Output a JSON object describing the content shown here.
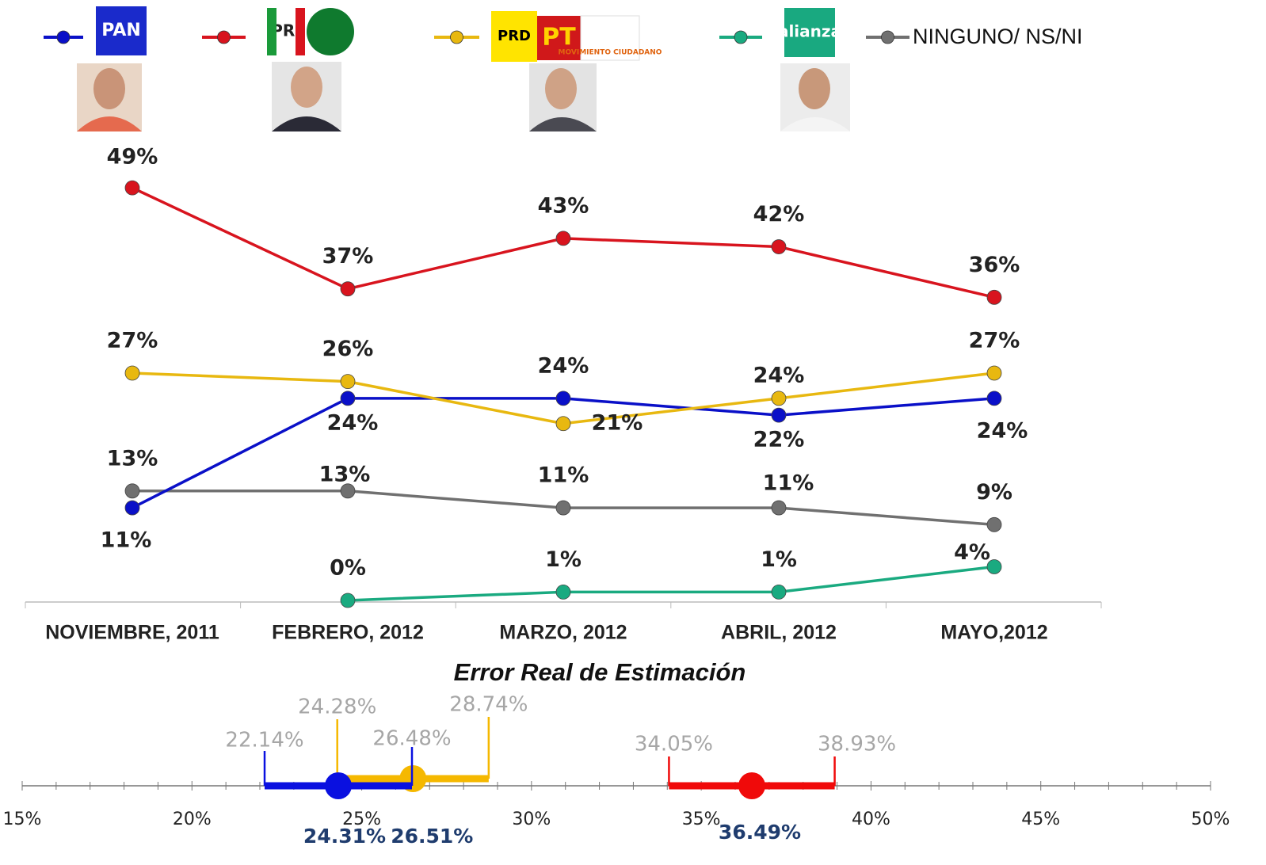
{
  "chart_data": [
    {
      "type": "line",
      "categories": [
        "NOVIEMBRE, 2011",
        "FEBRERO, 2012",
        "MARZO, 2012",
        "ABRIL, 2012",
        "MAYO,2012"
      ],
      "series": [
        {
          "logos": [
            "PAN"
          ],
          "color": "#0a10c8",
          "values": [
            11,
            24,
            24,
            22,
            24
          ],
          "value_labels": [
            "11%",
            "24%",
            "24%",
            "22%",
            "24%"
          ]
        },
        {
          "logos": [
            "PRI"
          ],
          "color": "#d8141e",
          "values": [
            49,
            37,
            43,
            42,
            36
          ],
          "value_labels": [
            "49%",
            "37%",
            "43%",
            "42%",
            "36%"
          ]
        },
        {
          "logos": [
            "PRD",
            "PT",
            "MOVIMIENTO CIUDADANO"
          ],
          "color": "#e8b810",
          "values": [
            27,
            26,
            21,
            24,
            27
          ],
          "value_labels": [
            "27%",
            "26%",
            "21%",
            "24%",
            "27%"
          ]
        },
        {
          "logos": [
            "alianza"
          ],
          "color": "#1aaa80",
          "values": [
            null,
            0,
            1,
            1,
            4
          ],
          "value_labels": [
            null,
            "0%",
            "1%",
            "1%",
            "4%"
          ]
        },
        {
          "name": "NINGUNO/ NS/NI",
          "color": "#707070",
          "values": [
            13,
            13,
            11,
            11,
            9
          ],
          "value_labels": [
            "13%",
            "13%",
            "11%",
            "11%",
            "9%"
          ]
        }
      ]
    },
    {
      "type": "range",
      "title": "Error Real de Estimación",
      "xlim": [
        15,
        50
      ],
      "xticks": [
        {
          "value": 15,
          "label": "15%"
        },
        {
          "value": 20,
          "label": "20%"
        },
        {
          "value": 25,
          "label": "25%"
        },
        {
          "value": 30,
          "label": "30%"
        },
        {
          "value": 35,
          "label": "35%"
        },
        {
          "value": 40,
          "label": "40%"
        },
        {
          "value": 45,
          "label": "45%"
        },
        {
          "value": 50,
          "label": "50%"
        }
      ],
      "minor_xticks": [
        16,
        17,
        18,
        19,
        21,
        22,
        23,
        24,
        26,
        27,
        28,
        29,
        31,
        32,
        33,
        34,
        36,
        37,
        38,
        39,
        41,
        42,
        43,
        44,
        46,
        47,
        48,
        49
      ],
      "series": [
        {
          "color": "#0a10e0",
          "values": [
            22.14,
            24.31,
            26.48
          ],
          "value_labels": [
            "22.14%",
            "24.31%",
            "26.48%"
          ]
        },
        {
          "color": "#f5b800",
          "values": [
            24.28,
            26.51,
            28.74
          ],
          "value_labels": [
            "24.28%",
            "26.51%",
            "28.74%"
          ]
        },
        {
          "color": "#f00a0a",
          "values": [
            34.05,
            36.49,
            38.93
          ],
          "value_labels": [
            "34.05%",
            "36.49%",
            "38.93%"
          ]
        }
      ]
    }
  ]
}
